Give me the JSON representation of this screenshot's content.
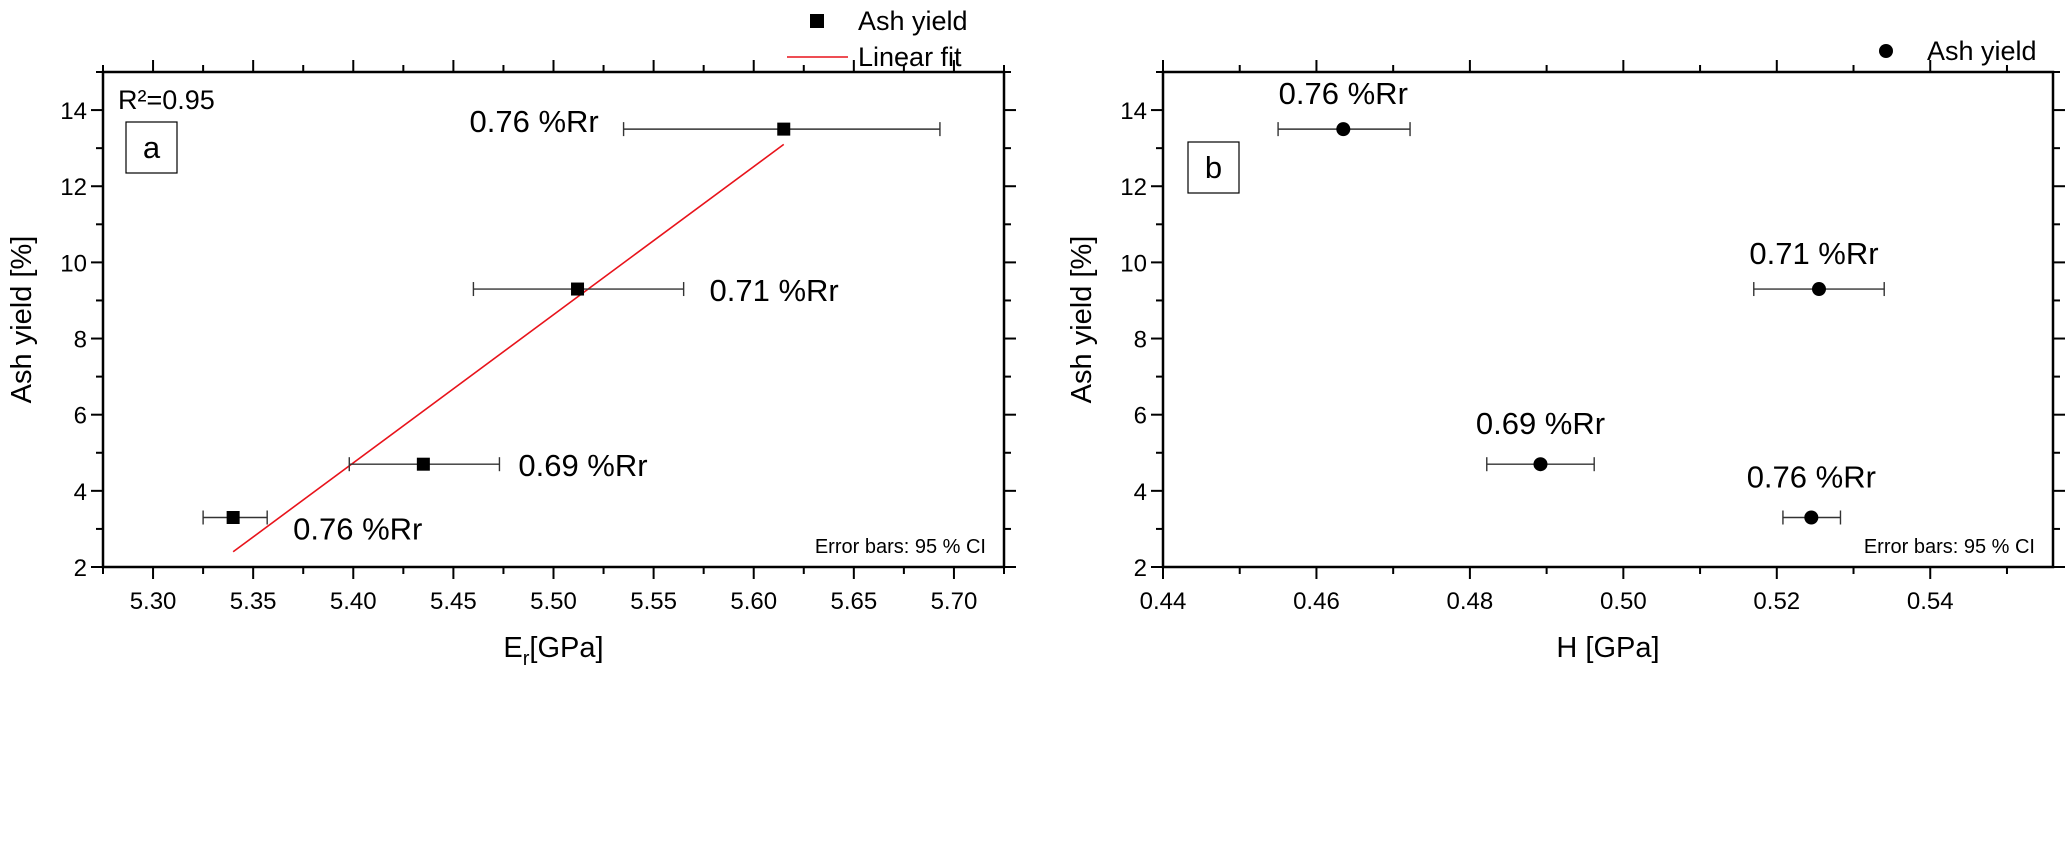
{
  "chart_data": [
    {
      "type": "scatter",
      "panel_label": "a",
      "xlabel_main": "E",
      "xlabel_sub": "r",
      "xlabel_unit": "[GPa]",
      "ylabel": "Ash yield  [%]",
      "xlim": [
        5.275,
        5.725
      ],
      "ylim": [
        2,
        15
      ],
      "xticks": [
        "5.30",
        "5.35",
        "5.40",
        "5.45",
        "5.50",
        "5.55",
        "5.60",
        "5.65",
        "5.70"
      ],
      "yticks": [
        "2",
        "4",
        "6",
        "8",
        "10",
        "12",
        "14"
      ],
      "legend": {
        "placement": "top-right-outside",
        "marker_label": "Ash yield",
        "line_label": "Linear fit"
      },
      "annotation_r2": "R²=0.95",
      "error_note": "Error bars: 95 % CI",
      "colors": {
        "marker": "#000000",
        "fit": "#e8131b"
      },
      "series": [
        {
          "marker": "square",
          "points": [
            {
              "x": 5.34,
              "y": 3.3,
              "xerr_low": 5.325,
              "xerr_high": 5.357,
              "label": "0.76 %Rr"
            },
            {
              "x": 5.435,
              "y": 4.7,
              "xerr_low": 5.398,
              "xerr_high": 5.473,
              "label": "0.69 %Rr"
            },
            {
              "x": 5.512,
              "y": 9.3,
              "xerr_low": 5.46,
              "xerr_high": 5.565,
              "label": "0.71 %Rr"
            },
            {
              "x": 5.615,
              "y": 13.5,
              "xerr_low": 5.535,
              "xerr_high": 5.693,
              "label": "0.76 %Rr"
            }
          ]
        }
      ],
      "fit_line": {
        "x": [
          5.34,
          5.615
        ],
        "y": [
          2.4,
          13.1
        ]
      }
    },
    {
      "type": "scatter",
      "panel_label": "b",
      "xlabel_main": "H [GPa]",
      "ylabel": "Ash yield [%]",
      "xlim": [
        0.44,
        0.556
      ],
      "ylim": [
        2,
        15
      ],
      "xticks": [
        "0.44",
        "0.46",
        "0.48",
        "0.50",
        "0.52",
        "0.54"
      ],
      "yticks": [
        "2",
        "4",
        "6",
        "8",
        "10",
        "12",
        "14"
      ],
      "legend": {
        "placement": "top-right-outside",
        "marker_label": "Ash yield"
      },
      "error_note": "Error bars: 95 % CI",
      "colors": {
        "marker": "#000000"
      },
      "series": [
        {
          "marker": "circle",
          "points": [
            {
              "x": 0.4635,
              "y": 13.5,
              "xerr_low": 0.455,
              "xerr_high": 0.4722,
              "label": "0.76 %Rr"
            },
            {
              "x": 0.5255,
              "y": 9.3,
              "xerr_low": 0.517,
              "xerr_high": 0.534,
              "label": "0.71 %Rr"
            },
            {
              "x": 0.4892,
              "y": 4.7,
              "xerr_low": 0.4822,
              "xerr_high": 0.4962,
              "label": "0.69 %Rr"
            },
            {
              "x": 0.5245,
              "y": 3.3,
              "xerr_low": 0.5208,
              "xerr_high": 0.5283,
              "label": "0.76 %Rr"
            }
          ]
        }
      ]
    }
  ]
}
